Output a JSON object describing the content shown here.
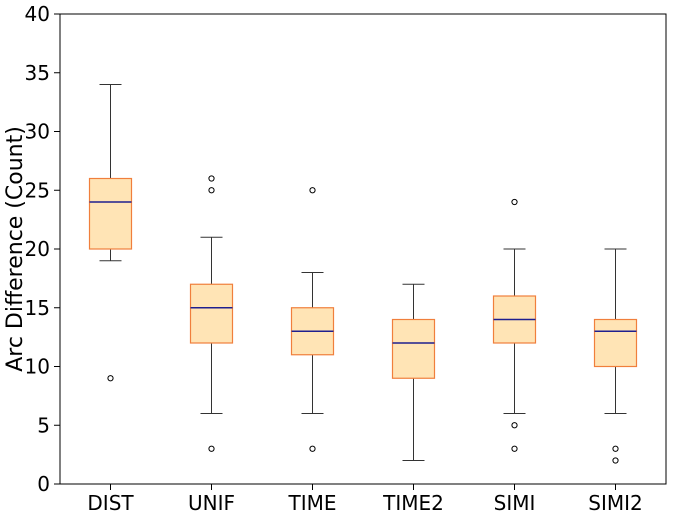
{
  "chart_data": {
    "type": "box",
    "title": "",
    "xlabel": "",
    "ylabel": "Arc Difference (Count)",
    "ylim": [
      0,
      40
    ],
    "yticks": [
      0,
      5,
      10,
      15,
      20,
      25,
      30,
      35,
      40
    ],
    "grid": false,
    "colors": {
      "box_fill": "#ffe4b5",
      "box_edge": "#f07f3c",
      "median": "#1f1f8f",
      "whisker": "#333333",
      "outlier": "#000000"
    },
    "categories": [
      "DIST",
      "UNIF",
      "TIME",
      "TIME2",
      "SIMI",
      "SIMI2"
    ],
    "boxes": [
      {
        "category": "DIST",
        "whisker_low": 19,
        "q1": 20,
        "median": 24,
        "q3": 26,
        "whisker_high": 34,
        "outliers": [
          9
        ]
      },
      {
        "category": "UNIF",
        "whisker_low": 6,
        "q1": 12,
        "median": 15,
        "q3": 17,
        "whisker_high": 21,
        "outliers": [
          3,
          25,
          26
        ]
      },
      {
        "category": "TIME",
        "whisker_low": 6,
        "q1": 11,
        "median": 13,
        "q3": 15,
        "whisker_high": 18,
        "outliers": [
          3,
          25
        ]
      },
      {
        "category": "TIME2",
        "whisker_low": 2,
        "q1": 9,
        "median": 12,
        "q3": 14,
        "whisker_high": 17,
        "outliers": []
      },
      {
        "category": "SIMI",
        "whisker_low": 6,
        "q1": 12,
        "median": 14,
        "q3": 16,
        "whisker_high": 20,
        "outliers": [
          3,
          5,
          24
        ]
      },
      {
        "category": "SIMI2",
        "whisker_low": 6,
        "q1": 10,
        "median": 13,
        "q3": 14,
        "whisker_high": 20,
        "outliers": [
          2,
          3
        ]
      }
    ]
  }
}
